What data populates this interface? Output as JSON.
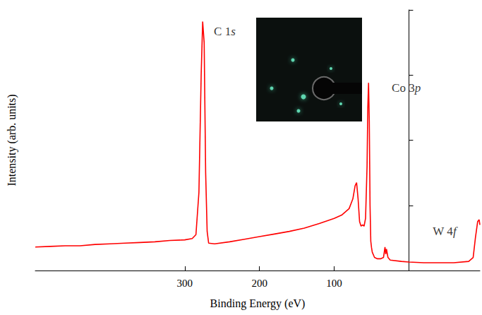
{
  "chart_data": {
    "type": "line",
    "x_label": "Binding Energy (eV)",
    "y_label": "Intensity (arb. units)",
    "x": [
      500,
      480,
      460,
      440,
      420,
      400,
      380,
      360,
      340,
      320,
      300,
      290,
      285,
      281,
      278,
      276,
      274,
      272,
      270,
      268,
      260,
      240,
      220,
      200,
      180,
      160,
      140,
      120,
      100,
      90,
      80,
      75,
      72,
      70,
      68,
      66,
      64,
      62,
      60,
      58,
      56,
      55,
      54,
      53,
      52,
      51,
      50,
      49,
      46,
      42,
      38,
      34,
      32,
      31,
      30,
      28,
      25,
      10,
      0,
      -20,
      -40,
      -60,
      -80,
      -86,
      -89,
      -92,
      -94,
      -95
    ],
    "values": [
      0.36,
      0.37,
      0.38,
      0.38,
      0.4,
      0.41,
      0.42,
      0.43,
      0.44,
      0.46,
      0.47,
      0.49,
      0.55,
      1.2,
      3.0,
      3.82,
      3.5,
      1.5,
      0.6,
      0.42,
      0.41,
      0.44,
      0.48,
      0.52,
      0.56,
      0.6,
      0.65,
      0.72,
      0.8,
      0.85,
      0.95,
      1.1,
      1.3,
      1.35,
      1.1,
      0.75,
      0.68,
      0.7,
      0.68,
      0.8,
      1.6,
      2.5,
      2.88,
      2.3,
      1.0,
      0.45,
      0.35,
      0.28,
      0.2,
      0.18,
      0.18,
      0.2,
      0.36,
      0.25,
      0.33,
      0.2,
      0.16,
      0.14,
      0.13,
      0.12,
      0.12,
      0.12,
      0.14,
      0.2,
      0.5,
      0.75,
      0.78,
      0.7
    ],
    "color": "#ff0000",
    "xlim": [
      500,
      -95
    ],
    "xticks": [
      300,
      200,
      100
    ],
    "ylim": [
      0,
      4
    ],
    "yticks": [
      0,
      1,
      2,
      3,
      4
    ],
    "tick_labels": "x",
    "grid": false,
    "annotations": [
      {
        "text": "C 1s",
        "x": 261,
        "y": 3.67
      },
      {
        "text": "Co 3p",
        "x": 23,
        "y": 2.8
      },
      {
        "text": "W 4f",
        "x": -32,
        "y": 0.6
      }
    ]
  }
}
